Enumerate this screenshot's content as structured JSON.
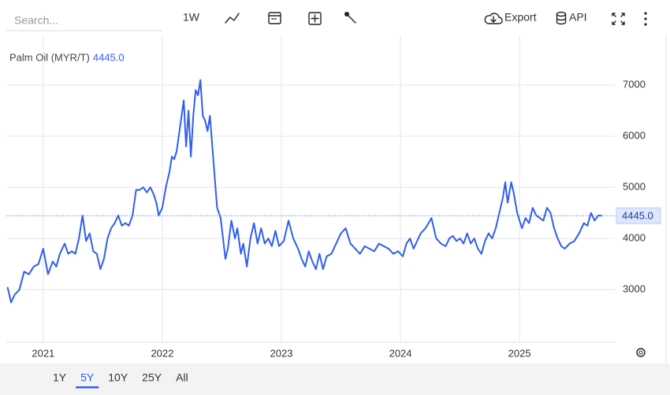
{
  "toolbar": {
    "search_placeholder": "Search...",
    "interval": "1W",
    "export": "Export",
    "api": "API"
  },
  "range_buttons": {
    "options": [
      "1Y",
      "5Y",
      "10Y",
      "25Y",
      "All"
    ],
    "selected": 1
  },
  "chart_data": {
    "type": "line",
    "title": "Palm Oil (MYR/T)",
    "current": {
      "value": 4445,
      "label": "4445.0"
    },
    "color": "#2f5ef0",
    "grid": true,
    "xlim": [
      2020.69,
      2025.8
    ],
    "xticks": [
      2021,
      2022,
      2023,
      2024,
      2025
    ],
    "ylim": [
      1970,
      7740
    ],
    "yticks": [
      3000,
      4000,
      5000,
      6000,
      7000
    ],
    "x": [
      2020.7,
      2020.73,
      2020.76,
      2020.8,
      2020.84,
      2020.88,
      2020.92,
      2020.96,
      2021.0,
      2021.04,
      2021.08,
      2021.11,
      2021.14,
      2021.18,
      2021.21,
      2021.24,
      2021.27,
      2021.3,
      2021.33,
      2021.36,
      2021.39,
      2021.42,
      2021.45,
      2021.48,
      2021.51,
      2021.54,
      2021.57,
      2021.6,
      2021.63,
      2021.66,
      2021.69,
      2021.72,
      2021.75,
      2021.78,
      2021.81,
      2021.84,
      2021.87,
      2021.9,
      2021.93,
      2021.95,
      2021.97,
      2022.0,
      2022.03,
      2022.06,
      2022.08,
      2022.1,
      2022.12,
      2022.15,
      2022.18,
      2022.2,
      2022.22,
      2022.24,
      2022.26,
      2022.28,
      2022.3,
      2022.32,
      2022.34,
      2022.36,
      2022.38,
      2022.4,
      2022.43,
      2022.46,
      2022.49,
      2022.53,
      2022.55,
      2022.58,
      2022.61,
      2022.63,
      2022.66,
      2022.68,
      2022.71,
      2022.74,
      2022.77,
      2022.8,
      2022.83,
      2022.86,
      2022.89,
      2022.92,
      2022.95,
      2022.98,
      2023.02,
      2023.06,
      2023.1,
      2023.14,
      2023.17,
      2023.2,
      2023.23,
      2023.26,
      2023.29,
      2023.32,
      2023.35,
      2023.38,
      2023.42,
      2023.46,
      2023.5,
      2023.54,
      2023.58,
      2023.62,
      2023.66,
      2023.7,
      2023.74,
      2023.78,
      2023.82,
      2023.86,
      2023.9,
      2023.94,
      2023.98,
      2024.02,
      2024.05,
      2024.08,
      2024.11,
      2024.14,
      2024.17,
      2024.21,
      2024.26,
      2024.3,
      2024.34,
      2024.38,
      2024.41,
      2024.44,
      2024.47,
      2024.5,
      2024.53,
      2024.56,
      2024.59,
      2024.62,
      2024.65,
      2024.68,
      2024.71,
      2024.74,
      2024.77,
      2024.8,
      2024.83,
      2024.86,
      2024.88,
      2024.9,
      2024.93,
      2024.95,
      2024.98,
      2025.02,
      2025.05,
      2025.08,
      2025.11,
      2025.14,
      2025.17,
      2025.2,
      2025.23,
      2025.26,
      2025.29,
      2025.32,
      2025.35,
      2025.38,
      2025.42,
      2025.46,
      2025.5,
      2025.54,
      2025.57,
      2025.6,
      2025.63,
      2025.66,
      2025.69
    ],
    "values": [
      3050,
      2750,
      2900,
      3000,
      3350,
      3300,
      3450,
      3500,
      3800,
      3300,
      3550,
      3450,
      3700,
      3900,
      3700,
      3750,
      3700,
      4000,
      4450,
      3950,
      4100,
      3750,
      3700,
      3400,
      3600,
      4000,
      4200,
      4300,
      4450,
      4250,
      4300,
      4250,
      4450,
      4950,
      4950,
      5000,
      4900,
      5000,
      4850,
      4700,
      4450,
      4600,
      5000,
      5300,
      5600,
      5550,
      5700,
      6200,
      6700,
      5800,
      6500,
      5600,
      6400,
      6900,
      6800,
      7100,
      6400,
      6300,
      6100,
      6400,
      5500,
      4600,
      4400,
      3600,
      3800,
      4350,
      4000,
      4200,
      3700,
      3900,
      3450,
      4000,
      4300,
      3900,
      4200,
      3900,
      4000,
      3850,
      4150,
      3850,
      3950,
      4350,
      4000,
      3800,
      3600,
      3450,
      3750,
      3550,
      3400,
      3700,
      3400,
      3650,
      3700,
      3900,
      4100,
      4200,
      3900,
      3800,
      3700,
      3850,
      3800,
      3750,
      3900,
      3850,
      3800,
      3700,
      3750,
      3650,
      3900,
      4000,
      3800,
      3950,
      4100,
      4200,
      4400,
      4000,
      3900,
      3850,
      4000,
      4050,
      3950,
      4000,
      3900,
      4100,
      3900,
      4000,
      3800,
      3700,
      3950,
      4100,
      4000,
      4200,
      4500,
      4800,
      5100,
      4700,
      5100,
      4900,
      4500,
      4200,
      4400,
      4300,
      4600,
      4450,
      4400,
      4350,
      4600,
      4500,
      4200,
      4000,
      3850,
      3800,
      3900,
      3950,
      4100,
      4300,
      4250,
      4500,
      4350,
      4450,
      4445
    ]
  }
}
